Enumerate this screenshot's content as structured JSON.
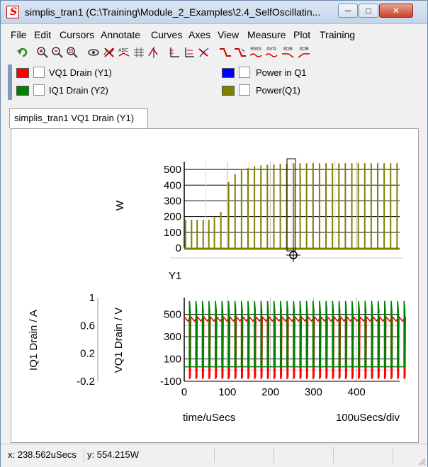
{
  "window": {
    "title": "simplis_tran1 (C:\\Training\\Module_2_Examples\\2.4_SelfOscillatin..."
  },
  "title_buttons": {
    "minimize": "─",
    "maximize": "□",
    "close": "✕"
  },
  "menu": [
    "File",
    "Edit",
    "Cursors",
    "Annotate",
    "Curves",
    "Axes",
    "View",
    "Measure",
    "Plot",
    "Training"
  ],
  "toolbar": {
    "icons": [
      "undo-icon",
      "zoom-in-icon",
      "zoom-out-icon",
      "zoom-fit-icon",
      "eye-icon",
      "delete-curve-icon",
      "label-icon",
      "grid-icon",
      "cursor-icon",
      "axis-icon",
      "axis-y-icon",
      "probe-icon",
      "rise-icon",
      "fall-icon",
      "rms-icon",
      "avg-icon",
      "3db-icon",
      "3db-fall-icon"
    ],
    "rms_label": "RMS",
    "avg_label": "AVG",
    "db_label": "3DB",
    "db2_label": "3DB"
  },
  "legend": [
    {
      "label": "VQ1 Drain (Y1)",
      "color": "#ff0000"
    },
    {
      "label": "IQ1 Drain (Y2)",
      "color": "#008000"
    },
    {
      "label": "Power in Q1",
      "color": "#0000ff"
    },
    {
      "label": "Power(Q1)",
      "color": "#808000"
    }
  ],
  "tab": {
    "label": "simplis_tran1 VQ1 Drain (Y1)"
  },
  "status": {
    "x_readout": "x: 238.562uSecs",
    "y_readout": "y: 554.215W"
  },
  "chart_data": [
    {
      "type": "line",
      "ylabel": "W",
      "ylim": [
        0,
        550
      ],
      "yticks": [
        "500",
        "400",
        "300",
        "200",
        "100",
        "0"
      ],
      "ytick_values": [
        500,
        400,
        300,
        200,
        100,
        0
      ],
      "xlim": [
        0,
        500
      ],
      "series": [
        {
          "name": "Power(Q1)",
          "color": "#808000",
          "pulses_x": [
            3,
            17,
            30,
            44,
            57,
            70,
            85,
            103,
            118,
            133,
            148,
            163,
            178,
            193,
            208,
            223,
            238,
            254,
            269,
            284,
            299,
            314,
            329,
            344,
            359,
            374,
            389,
            404,
            419,
            434,
            449,
            464,
            479,
            494
          ],
          "pulses_y": [
            180,
            180,
            180,
            180,
            180,
            195,
            230,
            420,
            470,
            495,
            510,
            520,
            525,
            530,
            530,
            535,
            535,
            540,
            540,
            540,
            540,
            540,
            540,
            540,
            540,
            540,
            540,
            540,
            540,
            540,
            540,
            540,
            540,
            540
          ]
        }
      ]
    },
    {
      "type": "line",
      "title": "Y1",
      "ylabel": "VQ1 Drain / V",
      "y2label": "IQ1 Drain / A",
      "xlabel": "time/uSecs",
      "x_div_label": "100uSecs/div",
      "ylim": [
        -100,
        650
      ],
      "yticks": [
        "500",
        "300",
        "100",
        "-100"
      ],
      "ytick_values": [
        500,
        300,
        100,
        -100
      ],
      "y2ticks": [
        "1",
        "0.6",
        "0.2",
        "-0.2"
      ],
      "y2lim": [
        -0.2,
        1
      ],
      "xlim": [
        0,
        500
      ],
      "xticks": [
        "0",
        "100",
        "200",
        "300",
        "400"
      ],
      "xtick_values": [
        0,
        100,
        200,
        300,
        400
      ],
      "series": [
        {
          "name": "VQ1 Drain (Y1)",
          "color": "#ff0000",
          "high": 480,
          "low": -80,
          "period": 15.1
        },
        {
          "name": "IQ1 Drain (Y2)",
          "color": "#008000",
          "high": 620,
          "low": 30,
          "period": 15.1
        }
      ]
    }
  ],
  "icon_colors": {
    "undo": "#2a8a2a",
    "zoom": "#c00000",
    "curve": "#d00000"
  }
}
